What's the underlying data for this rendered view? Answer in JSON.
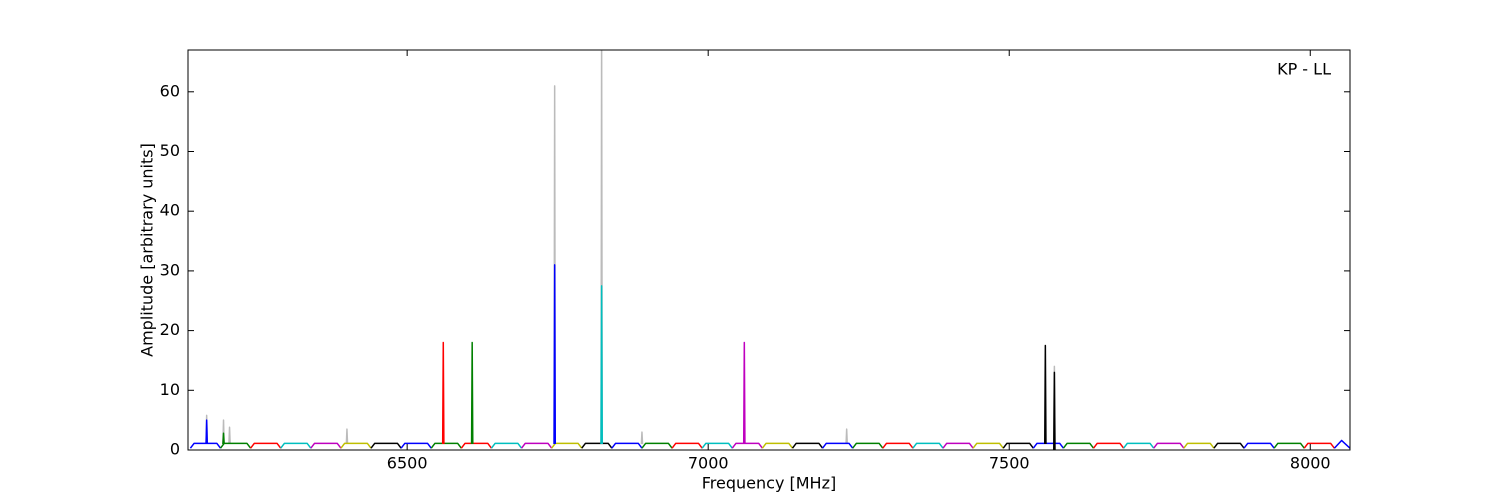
{
  "chart_data": {
    "type": "line",
    "annotation": "KP - LL",
    "xlabel": "Frequency [MHz]",
    "ylabel": "Amplitude [arbitrary units]",
    "xlim": [
      6136,
      8066
    ],
    "ylim": [
      0,
      67
    ],
    "xticks": [
      6500,
      7000,
      7500,
      8000
    ],
    "yticks": [
      0,
      10,
      20,
      30,
      40,
      50,
      60
    ],
    "series": [
      {
        "color": "#bbbbbb",
        "x": [
          6166,
          6167,
          6168,
          null,
          6194,
          6195,
          6196,
          null,
          6204,
          6205,
          6206,
          null,
          6399,
          6400,
          6401,
          null,
          6744,
          6745,
          6746,
          null,
          6822,
          6823,
          6824,
          null,
          6889,
          6890,
          6891,
          null,
          7229,
          7230,
          7231,
          null,
          7574,
          7575,
          7576
        ],
        "values": [
          1,
          5.8,
          1,
          null,
          1,
          5,
          1,
          null,
          1,
          3.8,
          1,
          null,
          1,
          3.5,
          1,
          null,
          1,
          61,
          1,
          null,
          1,
          70,
          1,
          null,
          1,
          3,
          1,
          null,
          1,
          3.5,
          1,
          null,
          1,
          14,
          1
        ]
      },
      {
        "color": "#0000ff",
        "x": [
          6140,
          6146,
          6184,
          6190
        ],
        "values": [
          0.3,
          1.1,
          1.1,
          0.3
        ]
      },
      {
        "color": "#008000",
        "x": [
          6190,
          6196,
          6234,
          6240
        ],
        "values": [
          0.3,
          1.1,
          1.1,
          0.3
        ]
      },
      {
        "color": "#ff0000",
        "x": [
          6240,
          6246,
          6284,
          6290
        ],
        "values": [
          0.3,
          1.1,
          1.1,
          0.3
        ]
      },
      {
        "color": "#00bfbf",
        "x": [
          6290,
          6296,
          6334,
          6340
        ],
        "values": [
          0.3,
          1.1,
          1.1,
          0.3
        ]
      },
      {
        "color": "#bf00bf",
        "x": [
          6340,
          6346,
          6384,
          6390
        ],
        "values": [
          0.3,
          1.1,
          1.1,
          0.3
        ]
      },
      {
        "color": "#bfbf00",
        "x": [
          6390,
          6396,
          6434,
          6440
        ],
        "values": [
          0.3,
          1.1,
          1.1,
          0.3
        ]
      },
      {
        "color": "#000000",
        "x": [
          6440,
          6446,
          6484,
          6490
        ],
        "values": [
          0.3,
          1.1,
          1.1,
          0.3
        ]
      },
      {
        "color": "#0000ff",
        "x": [
          6490,
          6496,
          6534,
          6540
        ],
        "values": [
          0.3,
          1.1,
          1.1,
          0.3
        ]
      },
      {
        "color": "#008000",
        "x": [
          6540,
          6546,
          6584,
          6590
        ],
        "values": [
          0.3,
          1.1,
          1.1,
          0.3
        ]
      },
      {
        "color": "#ff0000",
        "x": [
          6590,
          6596,
          6634,
          6640
        ],
        "values": [
          0.3,
          1.1,
          1.1,
          0.3
        ]
      },
      {
        "color": "#00bfbf",
        "x": [
          6640,
          6646,
          6684,
          6690
        ],
        "values": [
          0.3,
          1.1,
          1.1,
          0.3
        ]
      },
      {
        "color": "#bf00bf",
        "x": [
          6690,
          6696,
          6734,
          6740
        ],
        "values": [
          0.3,
          1.1,
          1.1,
          0.3
        ]
      },
      {
        "color": "#bfbf00",
        "x": [
          6740,
          6746,
          6784,
          6790
        ],
        "values": [
          0.3,
          1.1,
          1.1,
          0.3
        ]
      },
      {
        "color": "#000000",
        "x": [
          6790,
          6796,
          6834,
          6840
        ],
        "values": [
          0.3,
          1.1,
          1.1,
          0.3
        ]
      },
      {
        "color": "#0000ff",
        "x": [
          6840,
          6846,
          6884,
          6890
        ],
        "values": [
          0.3,
          1.1,
          1.1,
          0.3
        ]
      },
      {
        "color": "#008000",
        "x": [
          6890,
          6896,
          6934,
          6940
        ],
        "values": [
          0.3,
          1.1,
          1.1,
          0.3
        ]
      },
      {
        "color": "#ff0000",
        "x": [
          6940,
          6946,
          6984,
          6990
        ],
        "values": [
          0.3,
          1.1,
          1.1,
          0.3
        ]
      },
      {
        "color": "#00bfbf",
        "x": [
          6990,
          6996,
          7034,
          7040
        ],
        "values": [
          0.3,
          1.1,
          1.1,
          0.3
        ]
      },
      {
        "color": "#bf00bf",
        "x": [
          7040,
          7046,
          7084,
          7090
        ],
        "values": [
          0.3,
          1.1,
          1.1,
          0.3
        ]
      },
      {
        "color": "#bfbf00",
        "x": [
          7090,
          7096,
          7134,
          7140
        ],
        "values": [
          0.3,
          1.1,
          1.1,
          0.3
        ]
      },
      {
        "color": "#000000",
        "x": [
          7140,
          7146,
          7184,
          7190
        ],
        "values": [
          0.3,
          1.1,
          1.1,
          0.3
        ]
      },
      {
        "color": "#0000ff",
        "x": [
          7190,
          7196,
          7234,
          7240
        ],
        "values": [
          0.3,
          1.1,
          1.1,
          0.3
        ]
      },
      {
        "color": "#008000",
        "x": [
          7240,
          7246,
          7284,
          7290
        ],
        "values": [
          0.3,
          1.1,
          1.1,
          0.3
        ]
      },
      {
        "color": "#ff0000",
        "x": [
          7290,
          7296,
          7334,
          7340
        ],
        "values": [
          0.3,
          1.1,
          1.1,
          0.3
        ]
      },
      {
        "color": "#00bfbf",
        "x": [
          7340,
          7346,
          7384,
          7390
        ],
        "values": [
          0.3,
          1.1,
          1.1,
          0.3
        ]
      },
      {
        "color": "#bf00bf",
        "x": [
          7390,
          7396,
          7434,
          7440
        ],
        "values": [
          0.3,
          1.1,
          1.1,
          0.3
        ]
      },
      {
        "color": "#bfbf00",
        "x": [
          7440,
          7446,
          7484,
          7490
        ],
        "values": [
          0.3,
          1.1,
          1.1,
          0.3
        ]
      },
      {
        "color": "#000000",
        "x": [
          7490,
          7496,
          7534,
          7540
        ],
        "values": [
          0.3,
          1.1,
          1.1,
          0.3
        ]
      },
      {
        "color": "#0000ff",
        "x": [
          7540,
          7546,
          7584,
          7590
        ],
        "values": [
          0.3,
          1.1,
          1.1,
          0.3
        ]
      },
      {
        "color": "#008000",
        "x": [
          7590,
          7596,
          7634,
          7640
        ],
        "values": [
          0.3,
          1.1,
          1.1,
          0.3
        ]
      },
      {
        "color": "#ff0000",
        "x": [
          7640,
          7646,
          7684,
          7690
        ],
        "values": [
          0.3,
          1.1,
          1.1,
          0.3
        ]
      },
      {
        "color": "#00bfbf",
        "x": [
          7690,
          7696,
          7734,
          7740
        ],
        "values": [
          0.3,
          1.1,
          1.1,
          0.3
        ]
      },
      {
        "color": "#bf00bf",
        "x": [
          7740,
          7746,
          7784,
          7790
        ],
        "values": [
          0.3,
          1.1,
          1.1,
          0.3
        ]
      },
      {
        "color": "#bfbf00",
        "x": [
          7790,
          7796,
          7834,
          7840
        ],
        "values": [
          0.3,
          1.1,
          1.1,
          0.3
        ]
      },
      {
        "color": "#000000",
        "x": [
          7840,
          7846,
          7884,
          7890
        ],
        "values": [
          0.3,
          1.1,
          1.1,
          0.3
        ]
      },
      {
        "color": "#0000ff",
        "x": [
          7890,
          7896,
          7934,
          7940
        ],
        "values": [
          0.3,
          1.1,
          1.1,
          0.3
        ]
      },
      {
        "color": "#008000",
        "x": [
          7940,
          7946,
          7984,
          7990
        ],
        "values": [
          0.3,
          1.1,
          1.1,
          0.3
        ]
      },
      {
        "color": "#ff0000",
        "x": [
          7990,
          7996,
          8034,
          8040
        ],
        "values": [
          0.3,
          1.1,
          1.1,
          0.3
        ]
      },
      {
        "color": "#0000ff",
        "x": [
          8040,
          8052,
          8066
        ],
        "values": [
          0.3,
          1.6,
          0.3
        ]
      },
      {
        "color": "#0000ff",
        "x": [
          6166,
          6167,
          6168
        ],
        "values": [
          1,
          5,
          1
        ]
      },
      {
        "color": "#008000",
        "x": [
          6194,
          6195,
          6196
        ],
        "values": [
          1,
          2.8,
          1
        ]
      },
      {
        "color": "#ff0000",
        "x": [
          6559,
          6560,
          6561
        ],
        "values": [
          1,
          18,
          1
        ]
      },
      {
        "color": "#008000",
        "x": [
          6607,
          6608,
          6609
        ],
        "values": [
          1,
          18,
          1
        ]
      },
      {
        "color": "#0000ff",
        "x": [
          6744,
          6745,
          6746
        ],
        "values": [
          1,
          31,
          1
        ]
      },
      {
        "color": "#00bfbf",
        "x": [
          6822,
          6823,
          6824
        ],
        "values": [
          1,
          27.5,
          1
        ]
      },
      {
        "color": "#bf00bf",
        "x": [
          7059,
          7060,
          7061
        ],
        "values": [
          1,
          18,
          1
        ]
      },
      {
        "color": "#000000",
        "x": [
          7559,
          7560,
          7561
        ],
        "values": [
          1,
          17.5,
          1
        ]
      },
      {
        "color": "#000000",
        "x": [
          7574,
          7575,
          7576
        ],
        "values": [
          0,
          13,
          0
        ]
      }
    ]
  }
}
